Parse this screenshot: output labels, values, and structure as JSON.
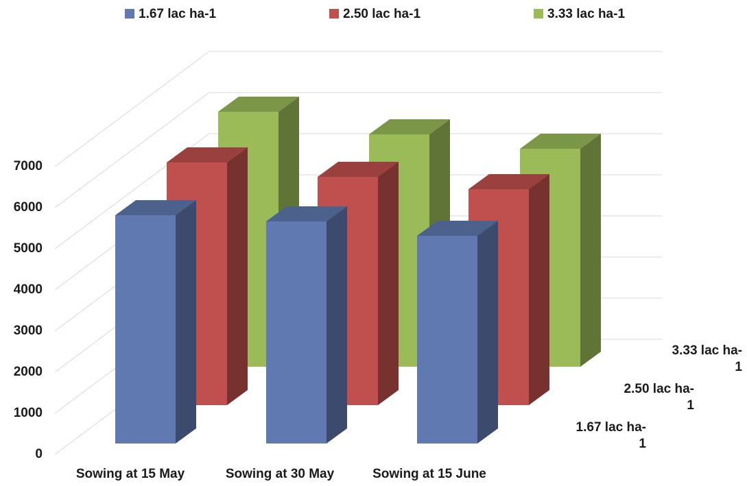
{
  "chart_data": {
    "type": "bar3d",
    "categories": [
      "Sowing at 15 May",
      "Sowing at 30 May",
      "Sowing at 15 June"
    ],
    "series": [
      {
        "name": "1.67 lac ha-1",
        "color": "#6079b0",
        "values": [
          5550,
          5400,
          5050
        ]
      },
      {
        "name": "2.50 lac ha-1",
        "color": "#c0504d",
        "values": [
          5900,
          5550,
          5250
        ]
      },
      {
        "name": "3.33 lac ha-1",
        "color": "#9bbb59",
        "values": [
          6200,
          5650,
          5300
        ]
      }
    ],
    "ylim": [
      0,
      7000
    ],
    "yticks": [
      0,
      1000,
      2000,
      3000,
      4000,
      5000,
      6000,
      7000
    ],
    "grid": true
  }
}
